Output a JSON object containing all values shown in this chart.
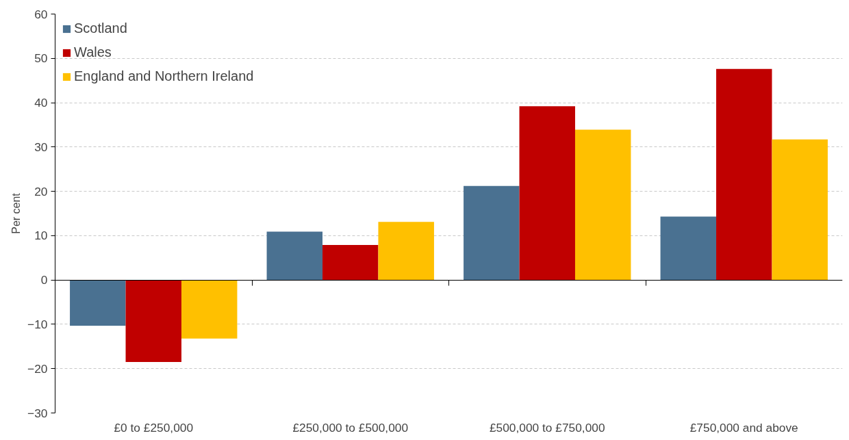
{
  "chart_data": {
    "type": "bar",
    "ylabel": "Per cent",
    "categories": [
      "£0 to £250,000",
      "£250,000 to £500,000",
      "£500,000 to £750,000",
      "£750,000 and above"
    ],
    "series": [
      {
        "name": "Scotland",
        "color": "#4a7191",
        "values": [
          -10.3,
          10.9,
          21.2,
          14.3
        ]
      },
      {
        "name": "Wales",
        "color": "#c00000",
        "values": [
          -18.5,
          7.9,
          39.2,
          47.6
        ]
      },
      {
        "name": "England and Northern Ireland",
        "color": "#ffc000",
        "values": [
          -13.2,
          13.1,
          33.9,
          31.7
        ]
      }
    ],
    "ylim": [
      -30,
      60
    ],
    "yticks": [
      -30,
      -20,
      -10,
      0,
      10,
      20,
      30,
      40,
      50,
      60
    ],
    "grid": "y",
    "legend": "top left"
  }
}
